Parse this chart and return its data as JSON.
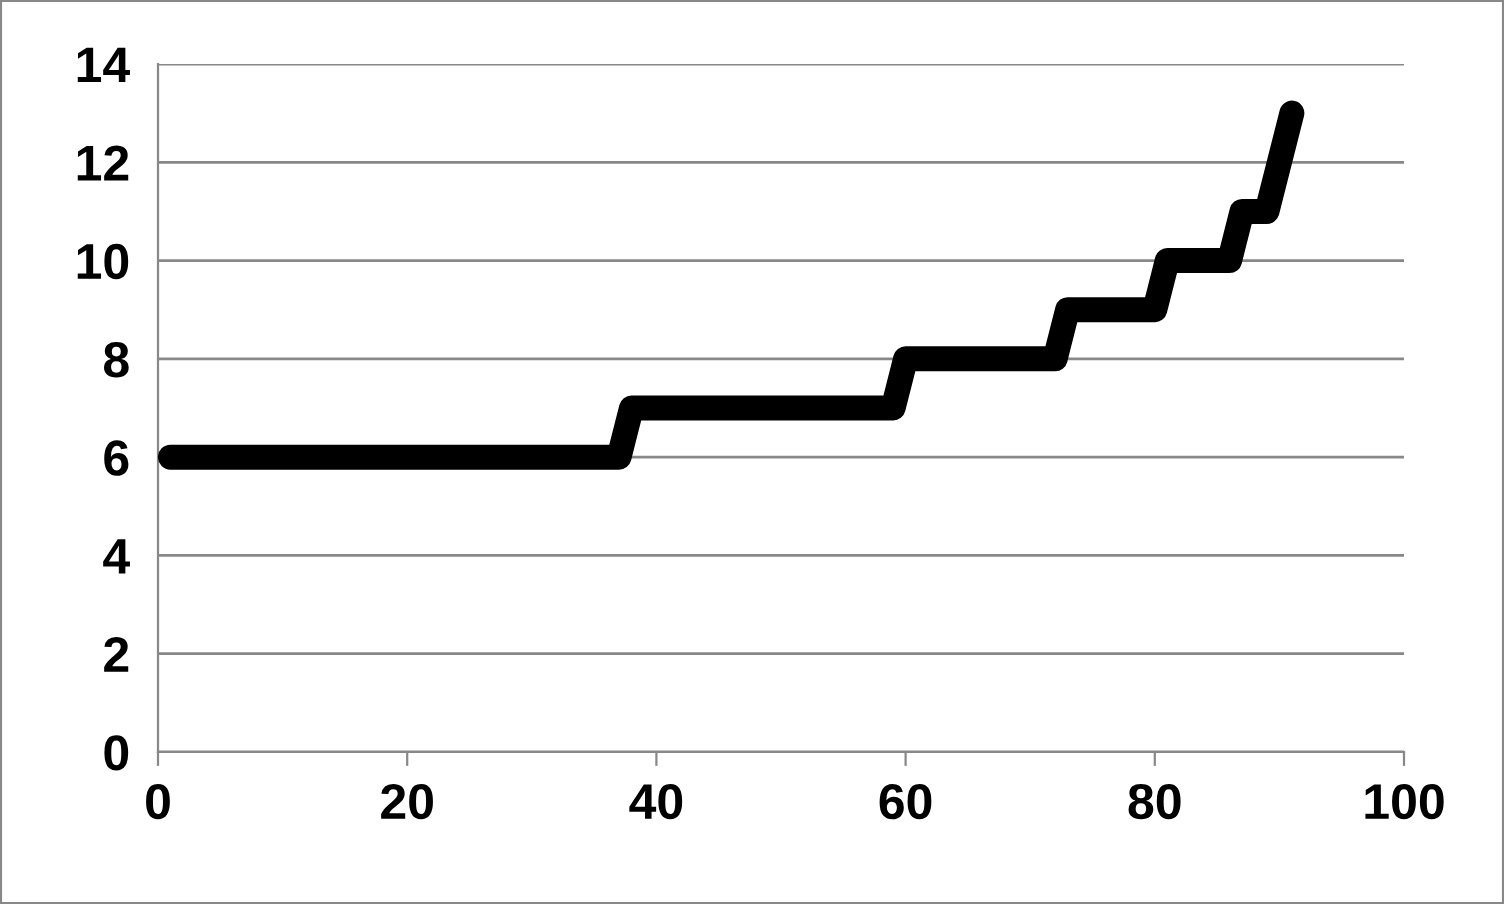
{
  "chart_data": {
    "type": "line",
    "x": [
      1,
      37,
      38,
      59,
      60,
      72,
      73,
      80,
      81,
      86,
      87,
      89,
      91
    ],
    "series": [
      {
        "color": "#000000",
        "values": [
          6,
          6,
          7,
          7,
          8,
          8,
          9,
          9,
          10,
          10,
          11,
          11,
          13
        ]
      }
    ],
    "xlim": [
      0,
      100
    ],
    "xticks": [
      0,
      20,
      40,
      60,
      80,
      100
    ],
    "ylim": [
      0,
      14
    ],
    "yticks": [
      0,
      2,
      4,
      6,
      8,
      10,
      12,
      14
    ],
    "grid": "y",
    "line_style": "solid"
  }
}
